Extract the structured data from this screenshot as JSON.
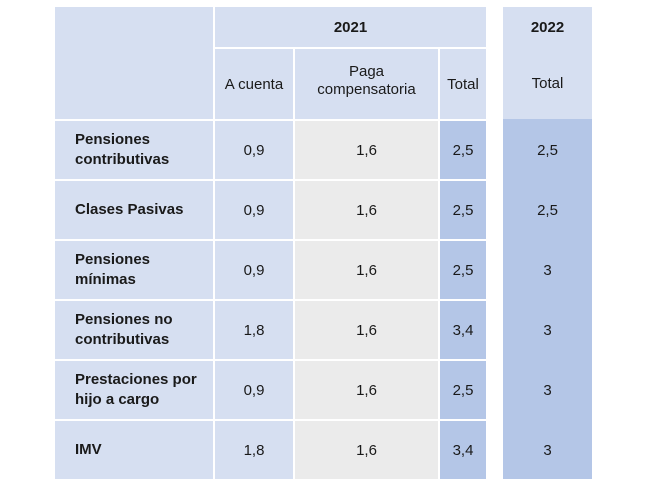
{
  "header": {
    "year_2021": "2021",
    "year_2022": "2022",
    "col_a_cuenta": "A cuenta",
    "col_paga_compensatoria": "Paga compensatoria",
    "col_total_2021": "Total",
    "col_total_2022": "Total"
  },
  "rows": [
    {
      "label": "Pensiones contributivas",
      "a_cuenta": "0,9",
      "paga": "1,6",
      "total_2021": "2,5",
      "total_2022": "2,5"
    },
    {
      "label": "Clases Pasivas",
      "a_cuenta": "0,9",
      "paga": "1,6",
      "total_2021": "2,5",
      "total_2022": "2,5"
    },
    {
      "label": "Pensiones mínimas",
      "a_cuenta": "0,9",
      "paga": "1,6",
      "total_2021": "2,5",
      "total_2022": "3"
    },
    {
      "label": "Pensiones no contributivas",
      "a_cuenta": "1,8",
      "paga": "1,6",
      "total_2021": "3,4",
      "total_2022": "3"
    },
    {
      "label": "Prestaciones por hijo a cargo",
      "a_cuenta": "0,9",
      "paga": "1,6",
      "total_2021": "2,5",
      "total_2022": "3"
    },
    {
      "label": "IMV",
      "a_cuenta": "1,8",
      "paga": "1,6",
      "total_2021": "3,4",
      "total_2022": "3"
    }
  ],
  "colors": {
    "light_blue": "#d6dff1",
    "gray": "#ebebeb",
    "dark_blue": "#b4c6e7"
  }
}
